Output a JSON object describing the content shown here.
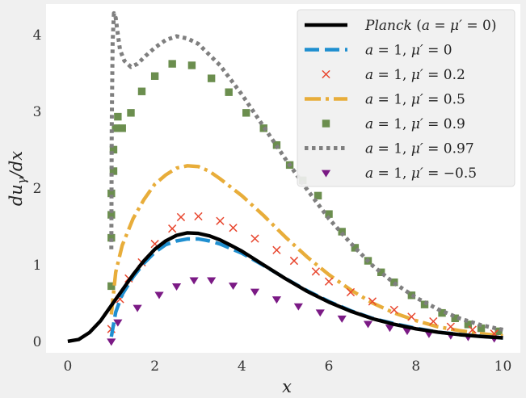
{
  "chart_data": {
    "type": "line",
    "xlabel": "x",
    "ylabel": "du_γ/dx",
    "xlim": [
      -0.5,
      10.4
    ],
    "ylim": [
      -0.15,
      4.4
    ],
    "xticks": [
      "0",
      "2",
      "4",
      "6",
      "8",
      "10"
    ],
    "yticks": [
      "0",
      "1",
      "2",
      "3",
      "4"
    ],
    "grid": false,
    "legend_position": "top-right",
    "series": [
      {
        "name": "Planck (a = μ′ = 0)",
        "legend_parts": [
          [
            "Planck",
            "i"
          ],
          [
            " (",
            "n"
          ],
          [
            "a",
            "i"
          ],
          [
            " = ",
            "n"
          ],
          [
            "μ′",
            "i"
          ],
          [
            " = 0)",
            "n"
          ]
        ],
        "style": "solid",
        "marker": "none",
        "color": "#000000",
        "x": [
          0,
          0.25,
          0.5,
          0.75,
          1,
          1.25,
          1.5,
          1.75,
          2,
          2.25,
          2.5,
          2.75,
          3,
          3.25,
          3.5,
          3.75,
          4,
          4.5,
          5,
          5.5,
          6,
          6.5,
          7,
          7.5,
          8,
          8.5,
          9,
          9.5,
          10
        ],
        "y": [
          0,
          0.024,
          0.115,
          0.265,
          0.467,
          0.666,
          0.87,
          1.051,
          1.2,
          1.31,
          1.382,
          1.415,
          1.408,
          1.376,
          1.322,
          1.251,
          1.176,
          0.996,
          0.818,
          0.653,
          0.511,
          0.392,
          0.296,
          0.222,
          0.163,
          0.12,
          0.087,
          0.063,
          0.045
        ]
      },
      {
        "name": "a = 1, μ′ = 0",
        "legend_parts": [
          [
            "a",
            "i"
          ],
          [
            " = 1,  ",
            "n"
          ],
          [
            "μ′",
            "i"
          ],
          [
            " = 0",
            "n"
          ]
        ],
        "style": "dashed",
        "marker": "none",
        "color": "#1f8fd0",
        "x": [
          1,
          1.1,
          1.25,
          1.5,
          1.75,
          2,
          2.25,
          2.5,
          2.75,
          3,
          3.25,
          3.5,
          4,
          4.5,
          5,
          5.5,
          6,
          6.5,
          7,
          7.5,
          8,
          8.5,
          9,
          9.5,
          10
        ],
        "y": [
          0.06,
          0.38,
          0.61,
          0.84,
          1.02,
          1.16,
          1.26,
          1.31,
          1.335,
          1.335,
          1.31,
          1.27,
          1.15,
          0.99,
          0.82,
          0.66,
          0.52,
          0.4,
          0.3,
          0.23,
          0.17,
          0.12,
          0.09,
          0.065,
          0.045
        ]
      },
      {
        "name": "a = 1, μ′ = 0.2",
        "legend_parts": [
          [
            "a",
            "i"
          ],
          [
            " = 1,  ",
            "n"
          ],
          [
            "μ′",
            "i"
          ],
          [
            " = 0.2",
            "n"
          ]
        ],
        "style": "none",
        "marker": "x",
        "color": "#e8472f",
        "x": [
          1.0,
          1.2,
          1.4,
          1.7,
          2.0,
          2.4,
          2.6,
          3.0,
          3.5,
          3.8,
          4.3,
          4.8,
          5.2,
          5.7,
          6.0,
          6.5,
          7.0,
          7.5,
          7.9,
          8.4,
          8.8,
          9.3,
          9.8
        ],
        "y": [
          0.16,
          0.55,
          0.82,
          1.03,
          1.27,
          1.47,
          1.62,
          1.63,
          1.57,
          1.48,
          1.34,
          1.19,
          1.05,
          0.91,
          0.78,
          0.64,
          0.52,
          0.41,
          0.32,
          0.26,
          0.19,
          0.15,
          0.1
        ]
      },
      {
        "name": "a = 1, μ′ = 0.5",
        "legend_parts": [
          [
            "a",
            "i"
          ],
          [
            " = 1,  ",
            "n"
          ],
          [
            "μ′",
            "i"
          ],
          [
            " = 0.5",
            "n"
          ]
        ],
        "style": "dashdot",
        "marker": "none",
        "color": "#e8ad3a",
        "x": [
          1,
          1.1,
          1.25,
          1.5,
          1.75,
          2,
          2.25,
          2.5,
          2.75,
          3,
          3.25,
          3.5,
          4,
          4.5,
          5,
          5.5,
          6,
          6.5,
          7,
          7.5,
          8,
          8.5,
          9,
          9.5,
          10
        ],
        "y": [
          0.35,
          0.9,
          1.25,
          1.6,
          1.85,
          2.05,
          2.17,
          2.26,
          2.29,
          2.28,
          2.22,
          2.12,
          1.9,
          1.64,
          1.36,
          1.1,
          0.87,
          0.67,
          0.5,
          0.37,
          0.27,
          0.19,
          0.14,
          0.1,
          0.07
        ]
      },
      {
        "name": "a = 1, μ′ = 0.9",
        "legend_parts": [
          [
            "a",
            "i"
          ],
          [
            " = 1,  ",
            "n"
          ],
          [
            "μ′",
            "i"
          ],
          [
            " = 0.9",
            "n"
          ]
        ],
        "style": "none",
        "marker": "square",
        "color": "#6b8e4e",
        "x": [
          1.0,
          1.0,
          1.0,
          1.0,
          1.05,
          1.05,
          1.1,
          1.15,
          1.25,
          1.45,
          1.7,
          2.0,
          2.4,
          2.85,
          3.3,
          3.7,
          4.1,
          4.5,
          4.8,
          5.1,
          5.4,
          5.75,
          6.0,
          6.3,
          6.6,
          6.9,
          7.2,
          7.5,
          7.9,
          8.2,
          8.6,
          8.9,
          9.2,
          9.5,
          9.9
        ],
        "y": [
          0.72,
          1.35,
          1.65,
          1.93,
          2.22,
          2.5,
          2.78,
          2.93,
          2.78,
          2.98,
          3.26,
          3.46,
          3.62,
          3.6,
          3.43,
          3.25,
          2.98,
          2.78,
          2.56,
          2.3,
          2.1,
          1.9,
          1.66,
          1.43,
          1.22,
          1.05,
          0.9,
          0.77,
          0.6,
          0.48,
          0.37,
          0.3,
          0.22,
          0.17,
          0.13
        ]
      },
      {
        "name": "a = 1, μ′ = 0.97",
        "legend_parts": [
          [
            "a",
            "i"
          ],
          [
            " = 1,  ",
            "n"
          ],
          [
            "μ′",
            "i"
          ],
          [
            " = 0.97",
            "n"
          ]
        ],
        "style": "dotted",
        "marker": "none",
        "color": "#7f7f7f",
        "x": [
          1,
          1.01,
          1.03,
          1.06,
          1.1,
          1.15,
          1.2,
          1.3,
          1.45,
          1.6,
          1.8,
          2,
          2.25,
          2.5,
          2.75,
          3,
          3.5,
          4,
          4.5,
          5,
          5.5,
          6,
          6.5,
          7,
          7.5,
          8,
          8.5,
          9,
          9.5,
          10
        ],
        "y": [
          1.2,
          2.8,
          3.9,
          4.28,
          4.22,
          4.0,
          3.8,
          3.66,
          3.58,
          3.62,
          3.73,
          3.83,
          3.93,
          3.98,
          3.95,
          3.88,
          3.6,
          3.22,
          2.8,
          2.38,
          1.98,
          1.6,
          1.28,
          0.99,
          0.76,
          0.57,
          0.42,
          0.3,
          0.21,
          0.15
        ]
      },
      {
        "name": "a = 1, μ′ = −0.5",
        "legend_parts": [
          [
            "a",
            "i"
          ],
          [
            " = 1,  ",
            "n"
          ],
          [
            "μ′",
            "i"
          ],
          [
            " = −0.5",
            "n"
          ]
        ],
        "style": "none",
        "marker": "triangle-down",
        "color": "#7b1a85",
        "x": [
          1.0,
          1.15,
          1.6,
          2.1,
          2.5,
          2.9,
          3.3,
          3.8,
          4.3,
          4.8,
          5.3,
          5.8,
          6.3,
          6.9,
          7.4,
          7.8,
          8.3,
          8.8,
          9.2,
          9.8
        ],
        "y": [
          0.0,
          0.25,
          0.44,
          0.61,
          0.72,
          0.8,
          0.8,
          0.73,
          0.65,
          0.55,
          0.46,
          0.38,
          0.3,
          0.23,
          0.18,
          0.14,
          0.1,
          0.08,
          0.06,
          0.04
        ]
      }
    ]
  }
}
